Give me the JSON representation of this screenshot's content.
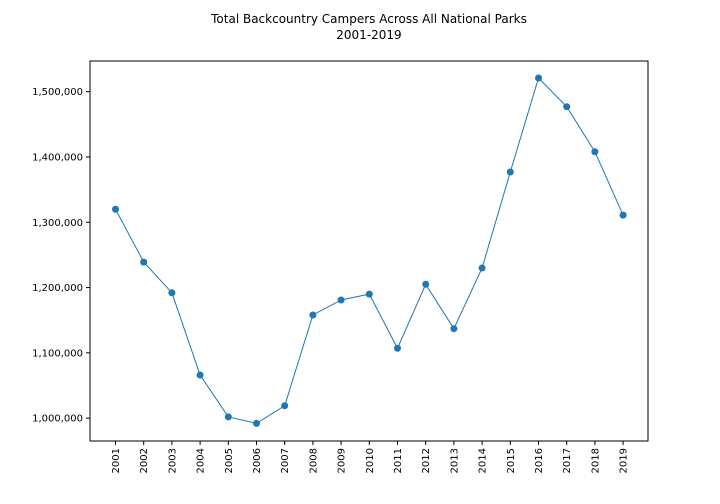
{
  "chart_data": {
    "type": "line",
    "title": "Total Backcountry Campers Across All National Parks",
    "subtitle": "2001-2019",
    "xlabel": "",
    "ylabel": "",
    "categories": [
      "2001",
      "2002",
      "2003",
      "2004",
      "2005",
      "2006",
      "2007",
      "2008",
      "2009",
      "2010",
      "2011",
      "2012",
      "2013",
      "2014",
      "2015",
      "2016",
      "2017",
      "2018",
      "2019"
    ],
    "series": [
      {
        "values": [
          1320000,
          1239000,
          1192000,
          1066000,
          1002000,
          992000,
          1019000,
          1158000,
          1181000,
          1190000,
          1107000,
          1205000,
          1137000,
          1230000,
          1377000,
          1521000,
          1477000,
          1408000,
          1311000
        ]
      }
    ],
    "ylim": [
      965000,
      1547000
    ],
    "yticks": [
      1000000,
      1100000,
      1200000,
      1300000,
      1400000,
      1500000
    ],
    "ytick_labels": [
      "1,000,000",
      "1,100,000",
      "1,200,000",
      "1,300,000",
      "1,400,000",
      "1,500,000"
    ],
    "grid": false,
    "legend": "none",
    "line_color": "#1f77b4",
    "marker_color": "#1f77b4"
  }
}
